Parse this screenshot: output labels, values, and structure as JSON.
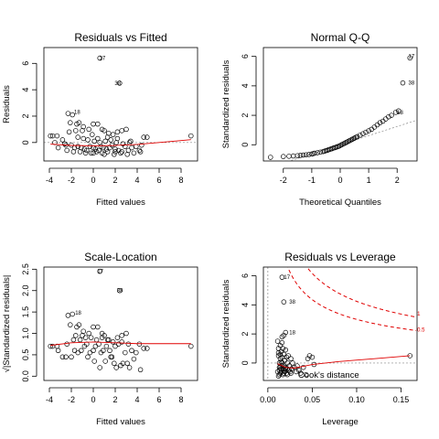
{
  "chart_data": [
    {
      "type": "scatter",
      "title": "Residuals vs Fitted",
      "xlabel": "Fitted values",
      "ylabel": "Residuals",
      "xlim": [
        -4.5,
        9.5
      ],
      "ylim": [
        -1.4,
        7.2
      ],
      "xticks": [
        -4,
        -2,
        0,
        2,
        4,
        6,
        8
      ],
      "yticks": [
        0,
        2,
        4,
        6
      ],
      "annotations": [
        {
          "text": "17",
          "x": 0.3,
          "y": 6.4
        },
        {
          "text": "38",
          "x": 1.7,
          "y": 4.5
        },
        {
          "text": "18",
          "x": -2.0,
          "y": 2.3
        }
      ],
      "series": [
        {
          "x": [
            0.6,
            2.4,
            -1.9,
            -2.3,
            -2.1,
            -1.5,
            -1.3,
            -0.9,
            -1.6,
            -1.0,
            -0.4,
            0.0,
            0.4,
            0.8,
            1.0,
            1.4,
            1.8,
            2.2,
            2.6,
            3.0,
            -3.7,
            -3.3,
            -2.8,
            -2.5,
            -2.0,
            -1.7,
            -1.4,
            -1.1,
            -0.8,
            -0.6,
            -0.3,
            0.0,
            0.2,
            0.5,
            0.7,
            0.9,
            1.2,
            1.5,
            1.7,
            2.0,
            2.3,
            2.6,
            2.9,
            3.2,
            3.5,
            3.9,
            4.2,
            4.6,
            4.9,
            8.9,
            -3.9,
            -3.2,
            -2.4,
            -1.8,
            -1.2,
            -0.7,
            -0.2,
            0.3,
            0.8,
            1.3,
            1.9,
            2.5,
            3.1,
            3.7,
            4.3,
            -0.5,
            0.1,
            0.6,
            1.1,
            1.6,
            2.1,
            2.7,
            3.3,
            -1.4,
            -0.9,
            -0.1,
            0.4,
            1.3,
            2.2,
            3.4,
            4.4,
            0.0,
            1.0,
            2.0,
            -2.2,
            -3.5,
            -2.6
          ],
          "y": [
            6.4,
            4.5,
            2.1,
            2.2,
            1.5,
            1.4,
            1.5,
            1.2,
            0.9,
            0.9,
            1.0,
            1.4,
            1.4,
            1.0,
            0.9,
            0.7,
            0.6,
            0.8,
            0.9,
            1.0,
            0.5,
            0.5,
            0.2,
            -0.2,
            -0.2,
            -0.4,
            -0.3,
            -0.4,
            -0.5,
            -0.6,
            -0.3,
            -0.4,
            -0.5,
            -0.6,
            -0.3,
            -0.4,
            -0.5,
            -0.4,
            -0.2,
            -0.5,
            -0.6,
            -0.7,
            -0.3,
            -0.6,
            -0.4,
            -0.3,
            -0.6,
            0.4,
            0.4,
            0.5,
            0.5,
            -0.4,
            -0.6,
            -0.7,
            -0.7,
            -0.8,
            -0.8,
            -0.7,
            -0.8,
            -0.7,
            -0.9,
            -0.8,
            -0.9,
            -0.8,
            -0.7,
            0.2,
            0.1,
            0.0,
            0.1,
            0.2,
            0.0,
            -0.1,
            0.0,
            0.4,
            0.3,
            0.6,
            0.3,
            0.4,
            0.3,
            0.1,
            -0.2,
            -0.8,
            -0.9,
            -0.7,
            0.8,
            0.0,
            -0.1
          ]
        }
      ],
      "smooth": {
        "x": [
          -3.9,
          -2,
          0,
          2,
          4,
          6,
          8,
          8.9
        ],
        "y": [
          -0.12,
          -0.22,
          -0.25,
          -0.22,
          -0.15,
          0.0,
          0.15,
          0.22
        ]
      },
      "reference_line": {
        "y": 0
      }
    },
    {
      "type": "scatter",
      "title": "Normal Q-Q",
      "xlabel": "Theoretical Quantiles",
      "ylabel": "Standardized residuals",
      "xlim": [
        -2.7,
        2.7
      ],
      "ylim": [
        -1.1,
        6.6
      ],
      "xticks": [
        -2,
        -1,
        0,
        1,
        2
      ],
      "yticks": [
        0,
        2,
        4,
        6
      ],
      "annotations": [
        {
          "text": "17",
          "x": 2.3,
          "y": 6.0
        },
        {
          "text": "38",
          "x": 2.3,
          "y": 4.2
        },
        {
          "text": "18",
          "x": 1.9,
          "y": 2.2
        }
      ],
      "series": [
        {
          "x": [
            -2.45,
            -2.0,
            -1.8,
            -1.65,
            -1.5,
            -1.4,
            -1.3,
            -1.2,
            -1.1,
            -1.0,
            -0.95,
            -0.9,
            -0.8,
            -0.7,
            -0.6,
            -0.55,
            -0.5,
            -0.45,
            -0.4,
            -0.35,
            -0.3,
            -0.25,
            -0.2,
            -0.15,
            -0.1,
            -0.05,
            0.0,
            0.05,
            0.1,
            0.15,
            0.2,
            0.25,
            0.3,
            0.35,
            0.4,
            0.45,
            0.5,
            0.55,
            0.6,
            0.7,
            0.8,
            0.9,
            1.0,
            1.1,
            1.2,
            1.3,
            1.4,
            1.5,
            1.6,
            1.7,
            1.8,
            1.95,
            2.05,
            2.2,
            2.45
          ],
          "y": [
            -0.85,
            -0.8,
            -0.78,
            -0.76,
            -0.74,
            -0.72,
            -0.7,
            -0.68,
            -0.66,
            -0.63,
            -0.6,
            -0.57,
            -0.54,
            -0.5,
            -0.46,
            -0.43,
            -0.4,
            -0.37,
            -0.33,
            -0.3,
            -0.27,
            -0.23,
            -0.2,
            -0.17,
            -0.13,
            -0.1,
            -0.05,
            0.0,
            0.05,
            0.1,
            0.15,
            0.2,
            0.25,
            0.3,
            0.35,
            0.4,
            0.45,
            0.5,
            0.55,
            0.65,
            0.75,
            0.85,
            0.95,
            1.05,
            1.2,
            1.35,
            1.5,
            1.6,
            1.75,
            1.9,
            2.0,
            2.2,
            2.3,
            4.2,
            5.9
          ]
        }
      ],
      "reference_line": {
        "slope": 0.62,
        "intercept": 0.0
      }
    },
    {
      "type": "scatter",
      "title": "Scale-Location",
      "xlabel": "Fitted values",
      "ylabel": "√|Standardized residuals|",
      "xlim": [
        -4.5,
        9.5
      ],
      "ylim": [
        -0.1,
        2.55
      ],
      "xticks": [
        -4,
        -2,
        0,
        2,
        4,
        6,
        8
      ],
      "yticks": [
        0.0,
        0.5,
        1.0,
        1.5,
        2.0,
        2.5
      ],
      "annotations": [
        {
          "text": "17",
          "x": 0.1,
          "y": 2.45
        },
        {
          "text": "38",
          "x": 1.9,
          "y": 2.0
        },
        {
          "text": "18",
          "x": -1.9,
          "y": 1.48
        }
      ],
      "series": [
        {
          "x": [
            0.6,
            2.4,
            -1.9,
            -2.3,
            -2.1,
            -1.5,
            -1.3,
            -0.9,
            -1.6,
            -1.0,
            -0.4,
            0.0,
            0.4,
            0.8,
            1.0,
            1.4,
            1.8,
            2.2,
            2.6,
            3.0,
            -3.7,
            -3.3,
            -2.8,
            -2.5,
            -2.0,
            -1.7,
            -1.4,
            -1.1,
            -0.8,
            -0.6,
            -0.3,
            0.0,
            0.2,
            0.5,
            0.7,
            0.9,
            1.2,
            1.5,
            1.7,
            2.0,
            2.3,
            2.6,
            2.9,
            3.2,
            3.5,
            3.9,
            4.2,
            4.6,
            4.9,
            8.9,
            -3.9,
            -3.2,
            -2.4,
            -1.8,
            -1.2,
            -0.7,
            -0.2,
            0.3,
            0.8,
            1.3,
            1.9,
            2.5,
            3.1,
            3.7,
            4.3,
            -0.5,
            0.1,
            0.6,
            1.1,
            1.6,
            2.1,
            2.7,
            3.3
          ],
          "y": [
            2.45,
            2.0,
            1.45,
            1.42,
            1.2,
            1.15,
            1.2,
            1.05,
            0.95,
            0.95,
            1.0,
            1.15,
            1.15,
            1.0,
            0.95,
            0.85,
            0.8,
            0.9,
            0.95,
            1.0,
            0.7,
            0.7,
            0.45,
            0.45,
            0.45,
            0.6,
            0.55,
            0.6,
            0.7,
            0.75,
            0.55,
            0.6,
            0.7,
            0.75,
            0.55,
            0.6,
            0.7,
            0.6,
            0.45,
            0.7,
            0.75,
            0.8,
            0.55,
            0.75,
            0.6,
            0.55,
            0.75,
            0.65,
            0.65,
            0.7,
            0.7,
            0.6,
            0.75,
            0.85,
            0.85,
            0.9,
            0.9,
            0.85,
            0.9,
            0.85,
            0.3,
            0.25,
            0.3,
            0.4,
            0.15,
            0.45,
            0.35,
            0.2,
            0.35,
            0.45,
            0.2,
            0.3,
            0.2
          ]
        }
      ],
      "smooth": {
        "x": [
          -3.9,
          -2,
          0,
          2,
          4,
          6,
          8,
          8.9
        ],
        "y": [
          0.72,
          0.78,
          0.8,
          0.78,
          0.76,
          0.76,
          0.76,
          0.76
        ]
      }
    },
    {
      "type": "scatter",
      "title": "Residuals vs Leverage",
      "xlabel": "Leverage",
      "ylabel": "Standardized residuals",
      "xlim": [
        -0.005,
        0.168
      ],
      "ylim": [
        -1.2,
        6.6
      ],
      "xticks": [
        0.0,
        0.05,
        0.1,
        0.15
      ],
      "yticks": [
        0,
        2,
        4,
        6
      ],
      "annotations": [
        {
          "text": "17",
          "x": 0.015,
          "y": 5.9
        },
        {
          "text": "38",
          "x": 0.021,
          "y": 4.2
        },
        {
          "text": "18",
          "x": 0.021,
          "y": 2.1
        },
        {
          "text": "Cook's distance",
          "x": 0.034,
          "y": -0.9
        },
        {
          "text": "0.5",
          "x": 0.165,
          "y": 2.3
        },
        {
          "text": "1",
          "x": 0.165,
          "y": 3.4
        }
      ],
      "series": [
        {
          "x": [
            0.011,
            0.012,
            0.012,
            0.013,
            0.013,
            0.013,
            0.014,
            0.014,
            0.014,
            0.015,
            0.015,
            0.015,
            0.016,
            0.016,
            0.016,
            0.017,
            0.017,
            0.018,
            0.018,
            0.019,
            0.019,
            0.02,
            0.02,
            0.021,
            0.021,
            0.022,
            0.022,
            0.023,
            0.024,
            0.025,
            0.026,
            0.027,
            0.028,
            0.03,
            0.032,
            0.033,
            0.035,
            0.037,
            0.04,
            0.043,
            0.045,
            0.047,
            0.05,
            0.052,
            0.011,
            0.012,
            0.013,
            0.014,
            0.015,
            0.016,
            0.017,
            0.018,
            0.019,
            0.02,
            0.022,
            0.024,
            0.026,
            0.012,
            0.014,
            0.016,
            0.018,
            0.016,
            0.018,
            0.02,
            0.16
          ],
          "y": [
            1.5,
            1.0,
            0.5,
            0.0,
            -0.5,
            -0.8,
            1.2,
            0.3,
            -0.3,
            0.8,
            0.1,
            -0.6,
            1.4,
            0.4,
            -0.2,
            1.0,
            -0.4,
            0.6,
            -0.7,
            0.2,
            -0.5,
            0.9,
            -0.3,
            0.4,
            -0.7,
            0.0,
            -0.4,
            0.5,
            -0.2,
            -0.6,
            0.3,
            -0.4,
            0.0,
            -0.3,
            -0.6,
            -0.2,
            -0.5,
            -0.7,
            -0.3,
            -0.8,
            0.3,
            0.5,
            0.4,
            -0.1,
            -0.6,
            -0.9,
            -0.3,
            -0.7,
            -0.4,
            0.0,
            -0.8,
            -0.2,
            -0.6,
            -0.4,
            -0.8,
            -0.5,
            -0.7,
            0.7,
            0.6,
            1.8,
            1.9,
            5.9,
            4.2,
            2.1,
            0.5
          ]
        }
      ],
      "smooth": {
        "x": [
          0.011,
          0.02,
          0.03,
          0.05,
          0.08,
          0.12,
          0.16
        ],
        "y": [
          -0.05,
          -0.3,
          -0.35,
          -0.1,
          0.1,
          0.3,
          0.5
        ]
      },
      "cook_levels": [
        0.5,
        1
      ],
      "p": 2
    }
  ]
}
